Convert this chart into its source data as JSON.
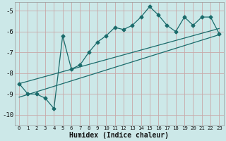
{
  "xlabel": "Humidex (Indice chaleur)",
  "bg_color": "#cce8e8",
  "grid_color": "#c8a8a8",
  "line_color": "#1a6b6b",
  "xlim": [
    -0.5,
    23.5
  ],
  "ylim": [
    -10.5,
    -4.6
  ],
  "xticks": [
    0,
    1,
    2,
    3,
    4,
    5,
    6,
    7,
    8,
    9,
    10,
    11,
    12,
    13,
    14,
    15,
    16,
    17,
    18,
    19,
    20,
    21,
    22,
    23
  ],
  "yticks": [
    -10,
    -9,
    -8,
    -7,
    -6,
    -5
  ],
  "main_x": [
    0,
    1,
    2,
    3,
    4,
    5,
    6,
    7,
    8,
    9,
    10,
    11,
    12,
    13,
    14,
    15,
    16,
    17,
    18,
    19,
    20,
    21,
    22,
    23
  ],
  "main_y": [
    -8.5,
    -9.0,
    -9.0,
    -9.2,
    -9.7,
    -6.2,
    -7.8,
    -7.6,
    -7.0,
    -6.5,
    -6.2,
    -5.8,
    -5.9,
    -5.7,
    -5.3,
    -4.8,
    -5.2,
    -5.7,
    -6.0,
    -5.3,
    -5.7,
    -5.3,
    -5.3,
    -6.1
  ],
  "lower_line_x": [
    0,
    23
  ],
  "lower_line_y": [
    -9.15,
    -6.15
  ],
  "upper_line_x": [
    0,
    23
  ],
  "upper_line_y": [
    -8.5,
    -5.85
  ],
  "marker": "D",
  "markersize": 2.5,
  "linewidth": 0.9,
  "xlabel_fontsize": 7,
  "xlabel_fontweight": "bold",
  "ytick_fontsize": 6.5,
  "xtick_fontsize": 5.2
}
